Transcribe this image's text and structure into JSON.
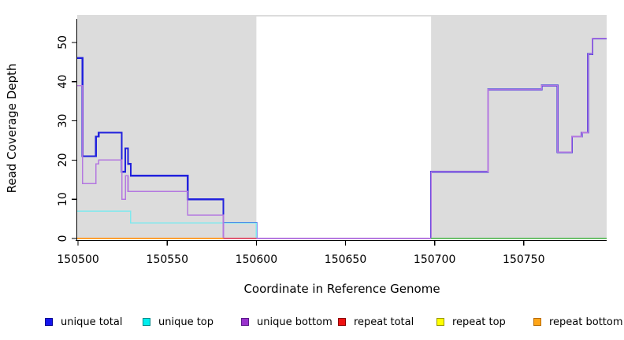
{
  "y_axis": {
    "label": "Read Coverage Depth",
    "ticks": [
      0,
      10,
      20,
      30,
      40,
      50
    ]
  },
  "x_axis": {
    "label": "Coordinate in Reference Genome",
    "ticks": [
      150500,
      150550,
      150600,
      150650,
      150700,
      150750
    ]
  },
  "legend": {
    "items": [
      {
        "label": "unique total",
        "fill": "#1414ee",
        "border": "#000090"
      },
      {
        "label": "unique top",
        "fill": "#00eeee",
        "border": "#008b8b"
      },
      {
        "label": "unique bottom",
        "fill": "#9932cc",
        "border": "#5b1a8b"
      },
      {
        "label": "repeat total",
        "fill": "#ee1111",
        "border": "#8b0000"
      },
      {
        "label": "repeat top",
        "fill": "#ffff00",
        "border": "#999900"
      },
      {
        "label": "repeat bottom",
        "fill": "#ffa517",
        "border": "#b86b00"
      }
    ]
  },
  "chart_data": {
    "type": "line",
    "step": true,
    "title": "",
    "xlabel": "Coordinate in Reference Genome",
    "ylabel": "Read Coverage Depth",
    "xlim": [
      150499.5,
      150796.5
    ],
    "ylim": [
      0,
      57
    ],
    "x_ticks": [
      150500,
      150550,
      150600,
      150650,
      150700,
      150750
    ],
    "y_ticks": [
      0,
      10,
      20,
      30,
      40,
      50
    ],
    "grid": false,
    "legend_position": "bottom",
    "background": {
      "plot_bg": "#dcdcdc",
      "white_gap": {
        "from": 150600,
        "to": 150698
      }
    },
    "series": [
      {
        "name": "unique total",
        "color": "#2222dd",
        "width": 2.2,
        "points": [
          [
            150499.5,
            46
          ],
          [
            150502.5,
            21
          ],
          [
            150510,
            26
          ],
          [
            150511.5,
            27
          ],
          [
            150524.5,
            17
          ],
          [
            150526.5,
            23
          ],
          [
            150528,
            19
          ],
          [
            150529.5,
            16
          ],
          [
            150561.5,
            10
          ],
          [
            150581.5,
            4
          ],
          [
            150600,
            0
          ],
          [
            150698,
            17
          ],
          [
            150730,
            38
          ],
          [
            150760,
            39
          ],
          [
            150769,
            22
          ],
          [
            150777,
            26
          ],
          [
            150782.5,
            27
          ],
          [
            150786,
            47
          ],
          [
            150788.5,
            51
          ]
        ],
        "end": 150796.5
      },
      {
        "name": "unique top",
        "color": "#7fe9ee",
        "width": 1.6,
        "points": [
          [
            150499.5,
            7
          ],
          [
            150529.5,
            4
          ],
          [
            150600,
            0
          ]
        ],
        "end": 150796.5
      },
      {
        "name": "unique bottom",
        "color": "#b478e0",
        "width": 1.6,
        "points": [
          [
            150499.5,
            39
          ],
          [
            150502.5,
            14
          ],
          [
            150510,
            19
          ],
          [
            150511.5,
            20
          ],
          [
            150524.5,
            10
          ],
          [
            150526.5,
            16
          ],
          [
            150528,
            12
          ],
          [
            150561.5,
            6
          ],
          [
            150581.5,
            0
          ],
          [
            150698,
            17
          ],
          [
            150730,
            38
          ],
          [
            150760,
            39
          ],
          [
            150769,
            22
          ],
          [
            150777,
            26
          ],
          [
            150782.5,
            27
          ],
          [
            150786,
            47
          ],
          [
            150788.5,
            51
          ]
        ],
        "end": 150796.5
      },
      {
        "name": "repeat total",
        "color": "#e0556e",
        "width": 1.6,
        "points": [
          [
            150499.5,
            0
          ]
        ],
        "end": 150600
      },
      {
        "name": "repeat top",
        "color": "#f5f500",
        "width": 1.6,
        "points": [
          [
            150499.5,
            0
          ]
        ],
        "end": 150581.5
      },
      {
        "name": "repeat bottom",
        "color": "#ff9d2e",
        "width": 2,
        "points": [
          [
            150499.5,
            0
          ]
        ],
        "end": 150581.5
      },
      {
        "name": "unlabeled green baseline",
        "color": "#6abf69",
        "width": 2,
        "points": [
          [
            150698,
            0
          ]
        ],
        "end": 150796.5
      }
    ]
  }
}
